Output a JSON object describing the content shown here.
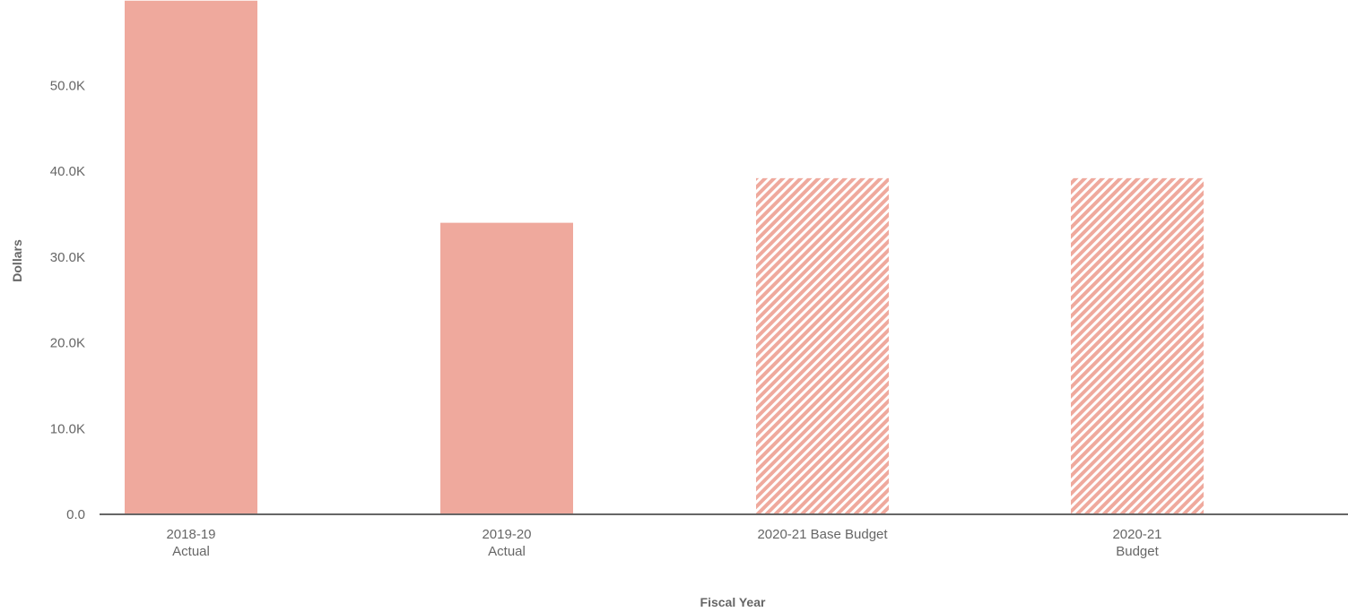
{
  "chart_data": {
    "type": "bar",
    "categories": [
      "2018-19 Actual",
      "2019-20 Actual",
      "2020-21 Base Budget",
      "2020-21 Budget"
    ],
    "category_label_lines": [
      [
        "2018-19",
        "Actual"
      ],
      [
        "2019-20",
        "Actual"
      ],
      [
        "2020-21 Base Budget"
      ],
      [
        "2020-21",
        "Budget"
      ]
    ],
    "values": [
      59900,
      34000,
      39200,
      39200
    ],
    "bar_styles": [
      "solid",
      "solid",
      "hatched",
      "hatched"
    ],
    "xlabel": "Fiscal Year",
    "ylabel": "Dollars",
    "ylim": [
      0,
      60000
    ],
    "y_ticks": [
      0,
      10000,
      20000,
      30000,
      40000,
      50000
    ],
    "y_tick_labels": [
      "0.0",
      "10.0K",
      "20.0K",
      "30.0K",
      "40.0K",
      "50.0K"
    ],
    "grid": false,
    "legend": "none",
    "colors": {
      "bar": "#efa99d",
      "axis_line": "#666666",
      "text": "#666666",
      "background": "#ffffff"
    }
  }
}
